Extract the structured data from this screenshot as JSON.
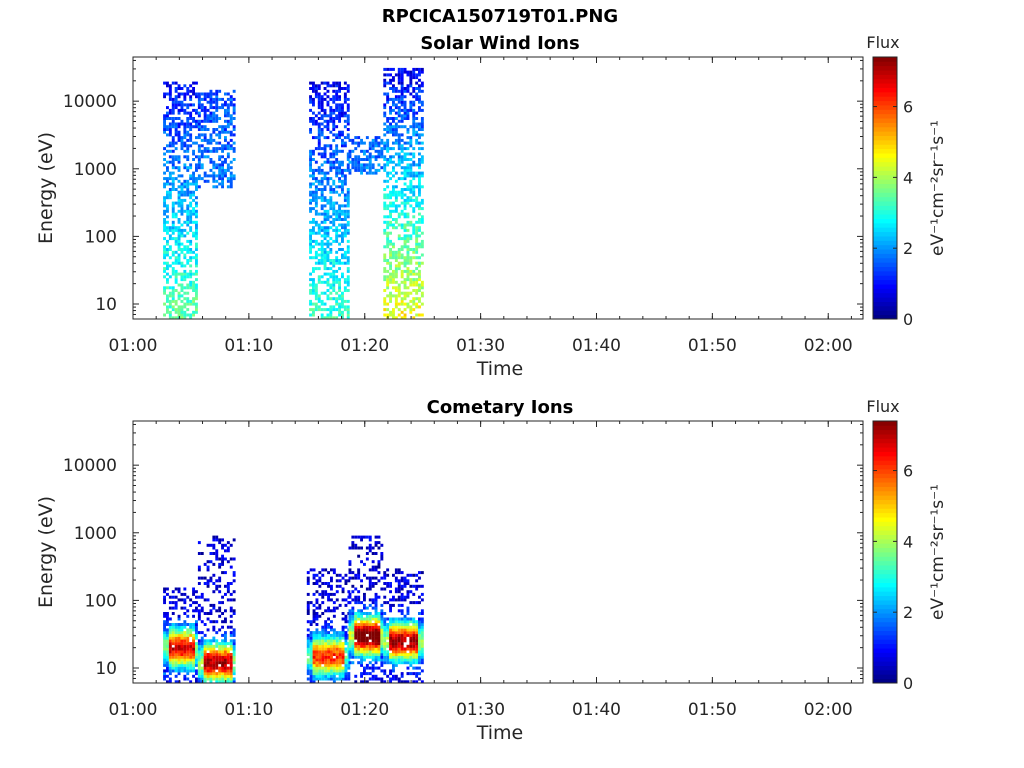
{
  "figure": {
    "title": "RPCICA150719T01.PNG"
  },
  "chart_data": [
    {
      "type": "heatmap",
      "title": "Solar Wind Ions",
      "xlabel": "Time",
      "ylabel": "Energy (eV)",
      "x_ticks": [
        "01:00",
        "01:10",
        "01:20",
        "01:30",
        "01:40",
        "01:50",
        "02:00"
      ],
      "x_range": [
        "01:00",
        "02:03"
      ],
      "y_scale": "log",
      "y_range": [
        6,
        45000
      ],
      "y_ticks": [
        10,
        100,
        1000,
        10000
      ],
      "y_tick_labels": [
        "10",
        "100",
        "1000",
        "10000"
      ],
      "colorbar": {
        "title": "Flux",
        "label": "eV⁻¹cm⁻²sr⁻¹s⁻¹",
        "range": [
          0,
          7.4
        ],
        "ticks": [
          0,
          2,
          4,
          6
        ],
        "colormap": "jet"
      },
      "clusters": [
        {
          "t_start": 2.6,
          "t_end": 5.6,
          "e_min": 6,
          "e_max": 20000,
          "high_e_level": 0.9,
          "low_e_level": 3.5
        },
        {
          "t_start": 5.6,
          "t_end": 8.8,
          "e_min": 500,
          "e_max": 15000,
          "high_e_level": 1.4,
          "low_e_level": 1.8
        },
        {
          "t_start": 15.2,
          "t_end": 18.6,
          "e_min": 6,
          "e_max": 20000,
          "high_e_level": 0.8,
          "low_e_level": 3.2
        },
        {
          "t_start": 18.6,
          "t_end": 21.6,
          "e_min": 800,
          "e_max": 3000,
          "high_e_level": 1.6,
          "low_e_level": 1.9
        },
        {
          "t_start": 21.6,
          "t_end": 25.0,
          "e_min": 6,
          "e_max": 30000,
          "high_e_level": 0.8,
          "low_e_level": 4.6
        }
      ]
    },
    {
      "type": "heatmap",
      "title": "Cometary Ions",
      "xlabel": "Time",
      "ylabel": "Energy (eV)",
      "x_ticks": [
        "01:00",
        "01:10",
        "01:20",
        "01:30",
        "01:40",
        "01:50",
        "02:00"
      ],
      "x_range": [
        "01:00",
        "02:03"
      ],
      "y_scale": "log",
      "y_range": [
        6,
        45000
      ],
      "y_ticks": [
        10,
        100,
        1000,
        10000
      ],
      "y_tick_labels": [
        "10",
        "100",
        "1000",
        "10000"
      ],
      "colorbar": {
        "title": "Flux",
        "label": "eV⁻¹cm⁻²sr⁻¹s⁻¹",
        "range": [
          0,
          7.4
        ],
        "ticks": [
          0,
          2,
          4,
          6
        ],
        "colormap": "jet"
      },
      "clusters": [
        {
          "t_start": 2.6,
          "t_end": 5.6,
          "e_min": 6,
          "e_max": 160,
          "peak_energy": 20,
          "peak_level": 6.2
        },
        {
          "t_start": 5.6,
          "t_end": 8.8,
          "e_min": 6,
          "e_max": 900,
          "peak_energy": 12,
          "peak_level": 6.5
        },
        {
          "t_start": 15.0,
          "t_end": 18.6,
          "e_min": 6,
          "e_max": 300,
          "peak_energy": 15,
          "peak_level": 5.6
        },
        {
          "t_start": 18.6,
          "t_end": 21.6,
          "e_min": 6,
          "e_max": 900,
          "peak_energy": 30,
          "peak_level": 7.2
        },
        {
          "t_start": 21.6,
          "t_end": 25.0,
          "e_min": 6,
          "e_max": 300,
          "peak_energy": 25,
          "peak_level": 6.6
        }
      ]
    }
  ]
}
